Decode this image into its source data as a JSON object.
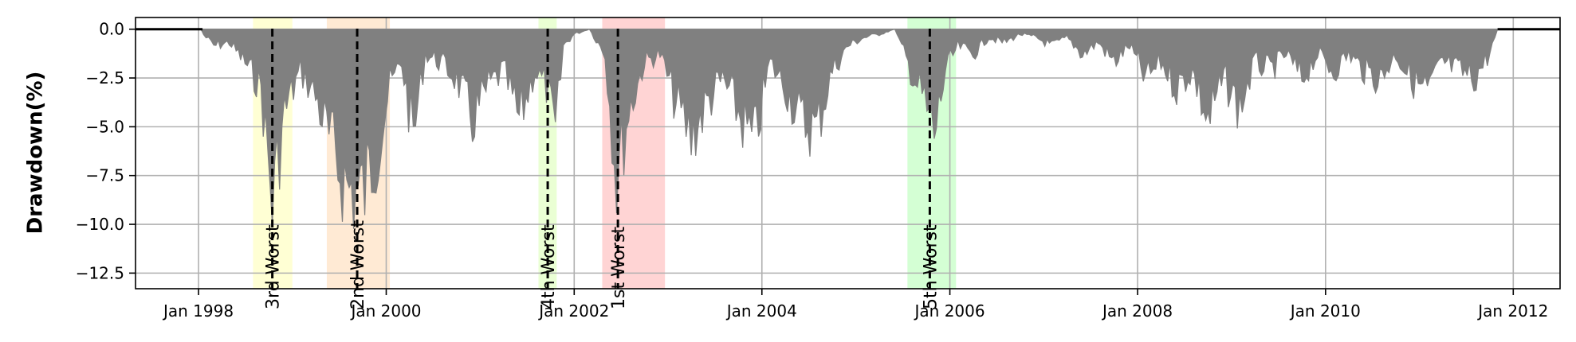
{
  "chart_data": {
    "type": "area",
    "ylabel": "Drawdown(%)",
    "xlim": [
      "1997-05-01",
      "2012-07-01"
    ],
    "ylim": [
      -13.3,
      0.6
    ],
    "grid": true,
    "yticks": [
      0.0,
      -2.5,
      -5.0,
      -7.5,
      -10.0,
      -12.5
    ],
    "ytick_labels": [
      "0.0",
      "−2.5",
      "−5.0",
      "−7.5",
      "−10.0",
      "−12.5"
    ],
    "xticks": [
      "1998-01-01",
      "2000-01-01",
      "2002-01-01",
      "2004-01-01",
      "2006-01-01",
      "2008-01-01",
      "2010-01-01",
      "2012-01-01"
    ],
    "xtick_labels": [
      "Jan 1998",
      "Jan 2000",
      "Jan 2002",
      "Jan 2004",
      "Jan 2006",
      "Jan 2008",
      "Jan 2010",
      "Jan 2012"
    ],
    "series": [
      {
        "color": "#808080",
        "x": [
          "1997-05-01",
          "1998-01-01",
          "1998-03-01",
          "1998-05-01",
          "1998-07-01",
          "1998-09-01",
          "1998-10-15",
          "1998-12-01",
          "1999-02-01",
          "1999-04-01",
          "1999-06-01",
          "1999-08-01",
          "1999-10-01",
          "1999-12-01",
          "2000-01-15",
          "2000-03-01",
          "2000-04-15",
          "2000-06-01",
          "2000-08-01",
          "2000-10-01",
          "2000-12-01",
          "2001-02-01",
          "2001-04-01",
          "2001-06-01",
          "2001-08-01",
          "2001-09-15",
          "2001-10-20",
          "2001-11-20",
          "2002-01-01",
          "2002-03-01",
          "2002-05-01",
          "2002-06-15",
          "2002-08-01",
          "2002-10-01",
          "2002-12-01",
          "2003-02-01",
          "2003-04-01",
          "2003-06-01",
          "2003-08-01",
          "2003-10-01",
          "2003-12-01",
          "2004-02-01",
          "2004-04-01",
          "2004-06-01",
          "2004-08-01",
          "2004-10-01",
          "2004-12-01",
          "2005-02-01",
          "2005-04-01",
          "2005-06-01",
          "2005-08-01",
          "2005-09-15",
          "2005-11-01",
          "2005-12-15",
          "2006-02-01",
          "2006-04-01",
          "2006-06-01",
          "2006-08-01",
          "2006-10-01",
          "2006-12-01",
          "2007-02-01",
          "2007-04-01",
          "2007-06-01",
          "2007-08-01",
          "2007-10-01",
          "2007-12-01",
          "2008-02-01",
          "2008-04-01",
          "2008-06-01",
          "2008-08-01",
          "2008-10-01",
          "2008-12-01",
          "2009-02-01",
          "2009-04-01",
          "2009-06-01",
          "2009-08-01",
          "2009-10-01",
          "2009-12-01",
          "2010-02-01",
          "2010-04-01",
          "2010-06-01",
          "2010-08-01",
          "2010-10-01",
          "2010-12-01",
          "2011-02-01",
          "2011-04-01",
          "2011-06-01",
          "2011-08-01",
          "2011-10-01",
          "2011-11-01",
          "2012-07-01"
        ],
        "y": [
          0,
          0,
          -1.0,
          -0.8,
          -2.0,
          -3.5,
          -10.5,
          -5.0,
          -2.5,
          -4.0,
          -7.0,
          -9.5,
          -10.0,
          -7.0,
          -3.5,
          -2.0,
          -6.5,
          -1.5,
          -2.0,
          -3.0,
          -5.5,
          -3.5,
          -2.5,
          -5.5,
          -2.5,
          -3.5,
          -6.5,
          -1.0,
          -0.3,
          0,
          -1.5,
          -9.0,
          -5.0,
          -2.0,
          -1.5,
          -4.5,
          -6.5,
          -4.5,
          -3.0,
          -5.0,
          -7.0,
          -2.0,
          -3.5,
          -5.5,
          -6.0,
          -2.5,
          -1.0,
          -0.5,
          -0.3,
          0,
          -2.5,
          -4.0,
          -6.5,
          -2.5,
          -1.0,
          -1.5,
          -0.5,
          -0.8,
          -0.3,
          -0.5,
          -1.0,
          -0.5,
          -1.5,
          -0.8,
          -2.0,
          -1.0,
          -3.0,
          -2.0,
          -3.5,
          -2.5,
          -5.6,
          -3.0,
          -4.8,
          -2.0,
          -2.5,
          -1.5,
          -3.0,
          -1.5,
          -2.5,
          -1.5,
          -2.5,
          -3.0,
          -1.5,
          -3.0,
          -3.8,
          -2.0,
          -2.5,
          -3.0,
          -1.5,
          0,
          0
        ]
      }
    ],
    "worst_periods": [
      {
        "label": "1st Worst",
        "valley": "2002-06-20",
        "start": "2002-04-20",
        "end": "2002-12-20",
        "color": "#ff0000"
      },
      {
        "label": "2nd Worst",
        "valley": "1999-09-10",
        "start": "1999-05-15",
        "end": "2000-01-15",
        "color": "#ff8000"
      },
      {
        "label": "3rd Worst",
        "valley": "1998-10-15",
        "start": "1998-08-01",
        "end": "1999-01-01",
        "color": "#ffff00"
      },
      {
        "label": "4th Worst",
        "valley": "2001-09-20",
        "start": "2001-08-15",
        "end": "2001-10-25",
        "color": "#80ff00"
      },
      {
        "label": "5th Worst",
        "valley": "2005-10-15",
        "start": "2005-07-20",
        "end": "2006-01-25",
        "color": "#00ff00"
      }
    ]
  }
}
